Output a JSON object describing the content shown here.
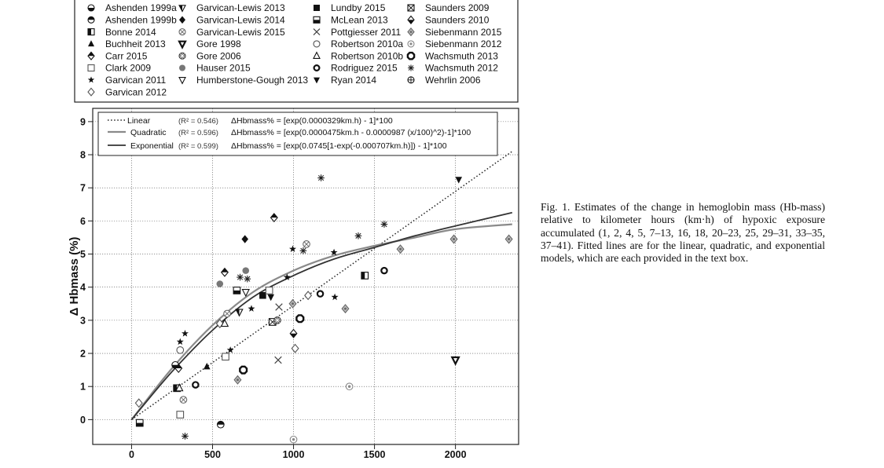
{
  "caption": "Fig. 1. Estimates of the change in hemoglobin mass (Hb-mass) relative to kilometer hours (km·h) of hypoxic exposure accumulated (1, 2, 4, 5, 7–13, 16, 18, 20–23, 25, 29–31, 33–35, 37–41). Fitted lines are for the linear, quadratic, and exponential models, which are each provided in the text box.",
  "chart_data": {
    "type": "scatter",
    "title": "",
    "xlabel": "",
    "ylabel": "Δ Hbmass (%)",
    "xlim": [
      -240,
      2390
    ],
    "ylim": [
      -0.75,
      9.4
    ],
    "xticks": [
      0,
      500,
      1000,
      1500,
      2000
    ],
    "yticks": [
      0,
      1,
      2,
      3,
      4,
      5,
      6,
      7,
      8,
      9
    ],
    "grid": true,
    "legend_position": "top",
    "studies": [
      {
        "name": "Ashenden 1999a",
        "marker": "half-circle-bottom"
      },
      {
        "name": "Ashenden 1999b",
        "marker": "half-circle-top"
      },
      {
        "name": "Bonne 2014",
        "marker": "half-square-left"
      },
      {
        "name": "Buchheit 2013",
        "marker": "filled-triangle-up"
      },
      {
        "name": "Carr 2015",
        "marker": "half-diamond"
      },
      {
        "name": "Clark 2009",
        "marker": "open-square"
      },
      {
        "name": "Garvican 2011",
        "marker": "star"
      },
      {
        "name": "Garvican 2012",
        "marker": "open-diamond"
      },
      {
        "name": "Garvican-Lewis 2013",
        "marker": "half-triangle-down"
      },
      {
        "name": "Garvican-Lewis 2014",
        "marker": "filled-diamond"
      },
      {
        "name": "Garvican-Lewis 2015",
        "marker": "circle-x"
      },
      {
        "name": "Gore 1998",
        "marker": "bold-triangle-down"
      },
      {
        "name": "Gore 2006",
        "marker": "circle-asterisk"
      },
      {
        "name": "Hauser 2015",
        "marker": "grey-circle"
      },
      {
        "name": "Humberstone-Gough 2013",
        "marker": "open-triangle-down"
      },
      {
        "name": "Lundby 2015",
        "marker": "filled-square"
      },
      {
        "name": "McLean 2013",
        "marker": "half-square-bottom"
      },
      {
        "name": "Pottgiesser 2011",
        "marker": "x-cross"
      },
      {
        "name": "Robertson 2010a",
        "marker": "open-circle"
      },
      {
        "name": "Robertson 2010b",
        "marker": "open-triangle-up"
      },
      {
        "name": "Rodriguez 2015",
        "marker": "bold-circle"
      },
      {
        "name": "Ryan 2014",
        "marker": "filled-triangle-down"
      },
      {
        "name": "Saunders 2009",
        "marker": "square-x"
      },
      {
        "name": "Saunders 2010",
        "marker": "half-diamond-bottom"
      },
      {
        "name": "Siebenmann 2015",
        "marker": "grey-diamond"
      },
      {
        "name": "Siebenmann 2012",
        "marker": "circle-dot"
      },
      {
        "name": "Wachsmuth 2013",
        "marker": "bold-octagon"
      },
      {
        "name": "Wachsmuth 2012",
        "marker": "asterisk"
      },
      {
        "name": "Wehrlin 2006",
        "marker": "circle-plus"
      }
    ],
    "fits": [
      {
        "name": "Linear",
        "r2": "(R² = 0.546)",
        "equation": "ΔHbmass% = [exp(0.0000329km.h) - 1]*100",
        "style": "dotted"
      },
      {
        "name": "Quadratic",
        "r2": "(R² = 0.596)",
        "equation": "ΔHbmass% = [exp(0.0000475km.h - 0.0000987 (x/100)^2)-1]*100",
        "style": "grey"
      },
      {
        "name": "Exponential",
        "r2": "(R² = 0.599)",
        "equation": "ΔHbmass% = [exp(0.0745[1-exp(-0.000707km.h)]) - 1]*100",
        "style": "dark"
      }
    ],
    "points": [
      {
        "x": 50,
        "y": -0.1,
        "m": "half-square-bottom"
      },
      {
        "x": 45,
        "y": 0.5,
        "m": "open-diamond"
      },
      {
        "x": 270,
        "y": 1.65,
        "m": "half-circle-bottom"
      },
      {
        "x": 290,
        "y": 1.55,
        "m": "half-diamond"
      },
      {
        "x": 280,
        "y": 0.95,
        "m": "half-square-left"
      },
      {
        "x": 295,
        "y": 0.95,
        "m": "open-triangle-up"
      },
      {
        "x": 300,
        "y": 0.15,
        "m": "open-square"
      },
      {
        "x": 300,
        "y": 2.1,
        "m": "open-circle"
      },
      {
        "x": 300,
        "y": 2.35,
        "m": "star"
      },
      {
        "x": 330,
        "y": 2.6,
        "m": "star"
      },
      {
        "x": 320,
        "y": 0.6,
        "m": "circle-x"
      },
      {
        "x": 330,
        "y": -0.5,
        "m": "asterisk"
      },
      {
        "x": 395,
        "y": 1.05,
        "m": "bold-circle"
      },
      {
        "x": 465,
        "y": 1.6,
        "m": "filled-triangle-up"
      },
      {
        "x": 545,
        "y": 4.1,
        "m": "grey-circle"
      },
      {
        "x": 545,
        "y": 2.9,
        "m": "open-diamond"
      },
      {
        "x": 550,
        "y": -0.15,
        "m": "half-circle-top"
      },
      {
        "x": 575,
        "y": 4.45,
        "m": "half-diamond"
      },
      {
        "x": 575,
        "y": 2.9,
        "m": "open-triangle-up"
      },
      {
        "x": 580,
        "y": 1.9,
        "m": "open-square"
      },
      {
        "x": 590,
        "y": 3.2,
        "m": "circle-x"
      },
      {
        "x": 610,
        "y": 2.1,
        "m": "star"
      },
      {
        "x": 650,
        "y": 3.9,
        "m": "half-square-bottom"
      },
      {
        "x": 655,
        "y": 1.2,
        "m": "grey-diamond"
      },
      {
        "x": 665,
        "y": 3.25,
        "m": "half-triangle-down"
      },
      {
        "x": 670,
        "y": 4.3,
        "m": "asterisk"
      },
      {
        "x": 690,
        "y": 1.5,
        "m": "bold-octagon"
      },
      {
        "x": 700,
        "y": 5.45,
        "m": "filled-diamond"
      },
      {
        "x": 705,
        "y": 4.5,
        "m": "grey-circle"
      },
      {
        "x": 705,
        "y": 3.85,
        "m": "open-triangle-down"
      },
      {
        "x": 715,
        "y": 4.25,
        "m": "asterisk"
      },
      {
        "x": 740,
        "y": 3.35,
        "m": "star"
      },
      {
        "x": 810,
        "y": 3.75,
        "m": "filled-square"
      },
      {
        "x": 850,
        "y": 3.9,
        "m": "open-square"
      },
      {
        "x": 860,
        "y": 3.7,
        "m": "filled-triangle-down"
      },
      {
        "x": 870,
        "y": 2.95,
        "m": "square-x"
      },
      {
        "x": 880,
        "y": 6.1,
        "m": "half-diamond"
      },
      {
        "x": 900,
        "y": 3.0,
        "m": "circle-asterisk"
      },
      {
        "x": 905,
        "y": 1.8,
        "m": "x-cross"
      },
      {
        "x": 910,
        "y": 3.4,
        "m": "x-cross"
      },
      {
        "x": 960,
        "y": 4.3,
        "m": "star"
      },
      {
        "x": 995,
        "y": 5.15,
        "m": "star"
      },
      {
        "x": 995,
        "y": 3.5,
        "m": "grey-diamond"
      },
      {
        "x": 1000,
        "y": 2.6,
        "m": "half-diamond-bottom"
      },
      {
        "x": 1000,
        "y": -0.6,
        "m": "circle-dot"
      },
      {
        "x": 1010,
        "y": 2.15,
        "m": "open-diamond"
      },
      {
        "x": 1040,
        "y": 3.05,
        "m": "bold-octagon"
      },
      {
        "x": 1060,
        "y": 5.1,
        "m": "asterisk"
      },
      {
        "x": 1080,
        "y": 5.3,
        "m": "circle-x"
      },
      {
        "x": 1090,
        "y": 3.75,
        "m": "open-diamond"
      },
      {
        "x": 1165,
        "y": 3.8,
        "m": "bold-circle"
      },
      {
        "x": 1170,
        "y": 7.3,
        "m": "asterisk"
      },
      {
        "x": 1250,
        "y": 5.05,
        "m": "star"
      },
      {
        "x": 1255,
        "y": 3.7,
        "m": "star"
      },
      {
        "x": 1320,
        "y": 3.35,
        "m": "grey-diamond"
      },
      {
        "x": 1345,
        "y": 1.0,
        "m": "circle-dot"
      },
      {
        "x": 1400,
        "y": 5.55,
        "m": "asterisk"
      },
      {
        "x": 1440,
        "y": 4.35,
        "m": "half-square-left"
      },
      {
        "x": 1560,
        "y": 5.9,
        "m": "asterisk"
      },
      {
        "x": 1560,
        "y": 4.5,
        "m": "bold-circle"
      },
      {
        "x": 1660,
        "y": 5.15,
        "m": "grey-diamond"
      },
      {
        "x": 1990,
        "y": 5.45,
        "m": "grey-diamond"
      },
      {
        "x": 2000,
        "y": 1.8,
        "m": "bold-triangle-down"
      },
      {
        "x": 2020,
        "y": 7.25,
        "m": "filled-triangle-down"
      },
      {
        "x": 2330,
        "y": 5.45,
        "m": "grey-diamond"
      }
    ],
    "curves": {
      "linear": {
        "x_end": 2350,
        "y_end": 8.1
      },
      "quadratic": [
        [
          0,
          0
        ],
        [
          250,
          1.55
        ],
        [
          500,
          2.85
        ],
        [
          750,
          3.85
        ],
        [
          1000,
          4.5
        ],
        [
          1250,
          4.95
        ],
        [
          1500,
          5.25
        ],
        [
          1750,
          5.5
        ],
        [
          2000,
          5.75
        ],
        [
          2350,
          5.9
        ]
      ],
      "exponential": [
        [
          0,
          0
        ],
        [
          250,
          1.45
        ],
        [
          500,
          2.7
        ],
        [
          750,
          3.7
        ],
        [
          1000,
          4.35
        ],
        [
          1250,
          4.85
        ],
        [
          1500,
          5.2
        ],
        [
          1750,
          5.55
        ],
        [
          2000,
          5.85
        ],
        [
          2350,
          6.25
        ]
      ]
    }
  }
}
